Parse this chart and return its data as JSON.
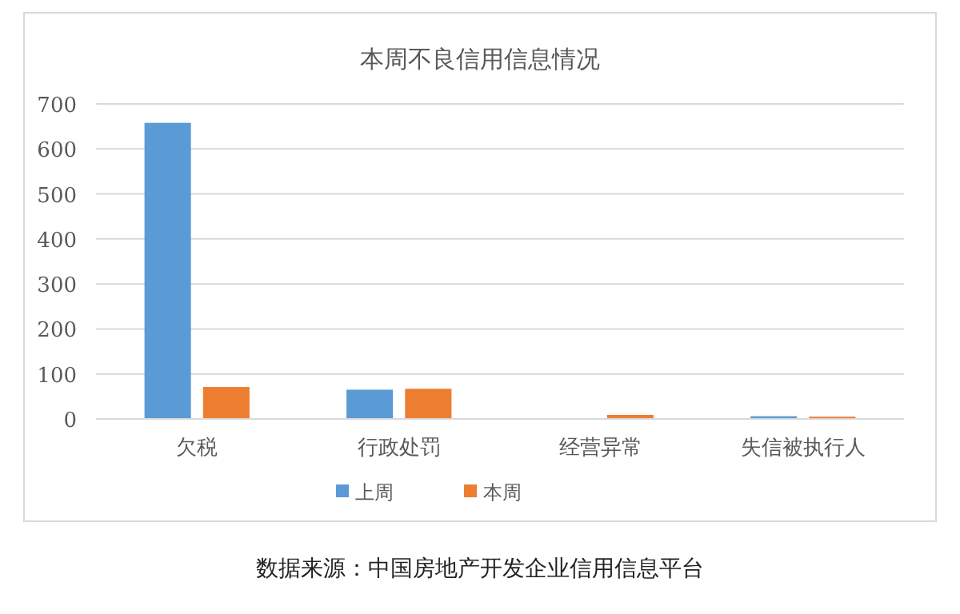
{
  "chart_data": {
    "type": "bar",
    "title": "本周不良信用信息情况",
    "categories": [
      "欠税",
      "行政处罚",
      "经营异常",
      "失信被执行人"
    ],
    "series": [
      {
        "name": "上周",
        "color": "#5b9bd5",
        "values": [
          658,
          65,
          0,
          6
        ]
      },
      {
        "name": "本周",
        "color": "#ed7d31",
        "values": [
          71,
          67,
          9,
          5
        ]
      }
    ],
    "ylim": [
      0,
      700
    ],
    "yticks": [
      0,
      100,
      200,
      300,
      400,
      500,
      600,
      700
    ],
    "grid": "y",
    "legend": "bottom",
    "annotations": [
      "数据来源：中国房地产开发企业信用信息平台"
    ]
  }
}
